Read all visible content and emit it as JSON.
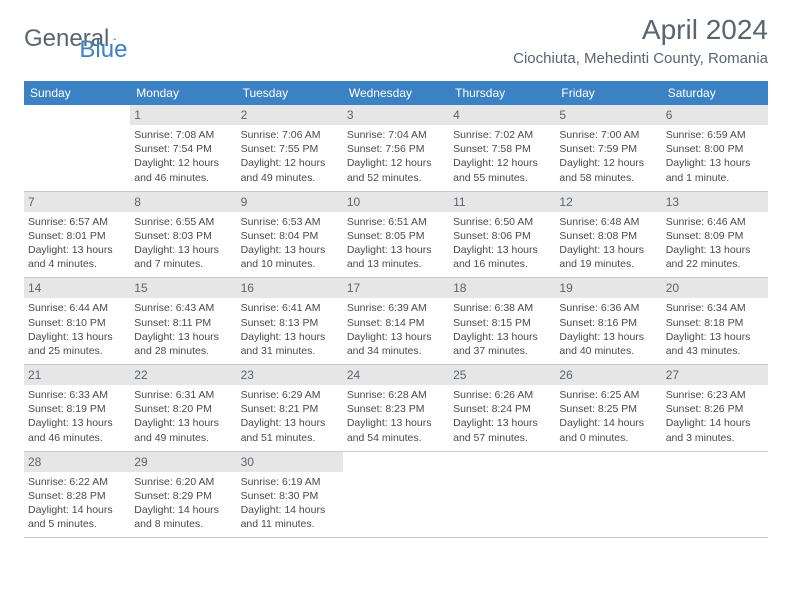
{
  "brand": {
    "general": "General",
    "blue": "Blue"
  },
  "title": "April 2024",
  "location": "Ciochiuta, Mehedinti County, Romania",
  "colors": {
    "header_bg": "#3b82c4",
    "daynum_bg": "#e6e6e6",
    "text_muted": "#5a6570",
    "text_body": "#4a4a4a",
    "border": "#c8c8c8"
  },
  "dayNames": [
    "Sunday",
    "Monday",
    "Tuesday",
    "Wednesday",
    "Thursday",
    "Friday",
    "Saturday"
  ],
  "weeks": [
    [
      null,
      {
        "n": "1",
        "sr": "Sunrise: 7:08 AM",
        "ss": "Sunset: 7:54 PM",
        "d1": "Daylight: 12 hours",
        "d2": "and 46 minutes."
      },
      {
        "n": "2",
        "sr": "Sunrise: 7:06 AM",
        "ss": "Sunset: 7:55 PM",
        "d1": "Daylight: 12 hours",
        "d2": "and 49 minutes."
      },
      {
        "n": "3",
        "sr": "Sunrise: 7:04 AM",
        "ss": "Sunset: 7:56 PM",
        "d1": "Daylight: 12 hours",
        "d2": "and 52 minutes."
      },
      {
        "n": "4",
        "sr": "Sunrise: 7:02 AM",
        "ss": "Sunset: 7:58 PM",
        "d1": "Daylight: 12 hours",
        "d2": "and 55 minutes."
      },
      {
        "n": "5",
        "sr": "Sunrise: 7:00 AM",
        "ss": "Sunset: 7:59 PM",
        "d1": "Daylight: 12 hours",
        "d2": "and 58 minutes."
      },
      {
        "n": "6",
        "sr": "Sunrise: 6:59 AM",
        "ss": "Sunset: 8:00 PM",
        "d1": "Daylight: 13 hours",
        "d2": "and 1 minute."
      }
    ],
    [
      {
        "n": "7",
        "sr": "Sunrise: 6:57 AM",
        "ss": "Sunset: 8:01 PM",
        "d1": "Daylight: 13 hours",
        "d2": "and 4 minutes."
      },
      {
        "n": "8",
        "sr": "Sunrise: 6:55 AM",
        "ss": "Sunset: 8:03 PM",
        "d1": "Daylight: 13 hours",
        "d2": "and 7 minutes."
      },
      {
        "n": "9",
        "sr": "Sunrise: 6:53 AM",
        "ss": "Sunset: 8:04 PM",
        "d1": "Daylight: 13 hours",
        "d2": "and 10 minutes."
      },
      {
        "n": "10",
        "sr": "Sunrise: 6:51 AM",
        "ss": "Sunset: 8:05 PM",
        "d1": "Daylight: 13 hours",
        "d2": "and 13 minutes."
      },
      {
        "n": "11",
        "sr": "Sunrise: 6:50 AM",
        "ss": "Sunset: 8:06 PM",
        "d1": "Daylight: 13 hours",
        "d2": "and 16 minutes."
      },
      {
        "n": "12",
        "sr": "Sunrise: 6:48 AM",
        "ss": "Sunset: 8:08 PM",
        "d1": "Daylight: 13 hours",
        "d2": "and 19 minutes."
      },
      {
        "n": "13",
        "sr": "Sunrise: 6:46 AM",
        "ss": "Sunset: 8:09 PM",
        "d1": "Daylight: 13 hours",
        "d2": "and 22 minutes."
      }
    ],
    [
      {
        "n": "14",
        "sr": "Sunrise: 6:44 AM",
        "ss": "Sunset: 8:10 PM",
        "d1": "Daylight: 13 hours",
        "d2": "and 25 minutes."
      },
      {
        "n": "15",
        "sr": "Sunrise: 6:43 AM",
        "ss": "Sunset: 8:11 PM",
        "d1": "Daylight: 13 hours",
        "d2": "and 28 minutes."
      },
      {
        "n": "16",
        "sr": "Sunrise: 6:41 AM",
        "ss": "Sunset: 8:13 PM",
        "d1": "Daylight: 13 hours",
        "d2": "and 31 minutes."
      },
      {
        "n": "17",
        "sr": "Sunrise: 6:39 AM",
        "ss": "Sunset: 8:14 PM",
        "d1": "Daylight: 13 hours",
        "d2": "and 34 minutes."
      },
      {
        "n": "18",
        "sr": "Sunrise: 6:38 AM",
        "ss": "Sunset: 8:15 PM",
        "d1": "Daylight: 13 hours",
        "d2": "and 37 minutes."
      },
      {
        "n": "19",
        "sr": "Sunrise: 6:36 AM",
        "ss": "Sunset: 8:16 PM",
        "d1": "Daylight: 13 hours",
        "d2": "and 40 minutes."
      },
      {
        "n": "20",
        "sr": "Sunrise: 6:34 AM",
        "ss": "Sunset: 8:18 PM",
        "d1": "Daylight: 13 hours",
        "d2": "and 43 minutes."
      }
    ],
    [
      {
        "n": "21",
        "sr": "Sunrise: 6:33 AM",
        "ss": "Sunset: 8:19 PM",
        "d1": "Daylight: 13 hours",
        "d2": "and 46 minutes."
      },
      {
        "n": "22",
        "sr": "Sunrise: 6:31 AM",
        "ss": "Sunset: 8:20 PM",
        "d1": "Daylight: 13 hours",
        "d2": "and 49 minutes."
      },
      {
        "n": "23",
        "sr": "Sunrise: 6:29 AM",
        "ss": "Sunset: 8:21 PM",
        "d1": "Daylight: 13 hours",
        "d2": "and 51 minutes."
      },
      {
        "n": "24",
        "sr": "Sunrise: 6:28 AM",
        "ss": "Sunset: 8:23 PM",
        "d1": "Daylight: 13 hours",
        "d2": "and 54 minutes."
      },
      {
        "n": "25",
        "sr": "Sunrise: 6:26 AM",
        "ss": "Sunset: 8:24 PM",
        "d1": "Daylight: 13 hours",
        "d2": "and 57 minutes."
      },
      {
        "n": "26",
        "sr": "Sunrise: 6:25 AM",
        "ss": "Sunset: 8:25 PM",
        "d1": "Daylight: 14 hours",
        "d2": "and 0 minutes."
      },
      {
        "n": "27",
        "sr": "Sunrise: 6:23 AM",
        "ss": "Sunset: 8:26 PM",
        "d1": "Daylight: 14 hours",
        "d2": "and 3 minutes."
      }
    ],
    [
      {
        "n": "28",
        "sr": "Sunrise: 6:22 AM",
        "ss": "Sunset: 8:28 PM",
        "d1": "Daylight: 14 hours",
        "d2": "and 5 minutes."
      },
      {
        "n": "29",
        "sr": "Sunrise: 6:20 AM",
        "ss": "Sunset: 8:29 PM",
        "d1": "Daylight: 14 hours",
        "d2": "and 8 minutes."
      },
      {
        "n": "30",
        "sr": "Sunrise: 6:19 AM",
        "ss": "Sunset: 8:30 PM",
        "d1": "Daylight: 14 hours",
        "d2": "and 11 minutes."
      },
      null,
      null,
      null,
      null
    ]
  ]
}
